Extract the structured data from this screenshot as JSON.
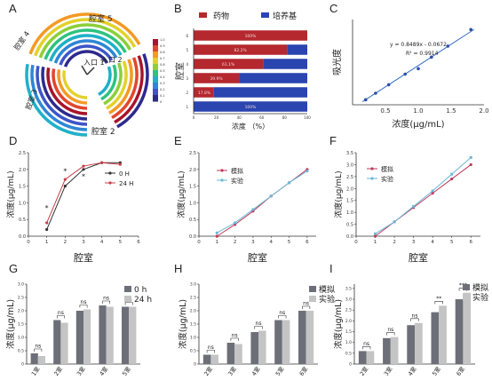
{
  "panel_letters": [
    "A",
    "B",
    "C",
    "D",
    "E",
    "F",
    "G",
    "H",
    "I"
  ],
  "panelA": {
    "chamber_labels": [
      "腔室 5",
      "腔室 4",
      "腔室 3",
      "腔室 2",
      "入口 1",
      "入口 2"
    ],
    "colorbar_ticks": [
      "1.0",
      "0.9",
      "0.8",
      "0.7",
      "0.6",
      "0.5",
      "0.4",
      "0.3",
      "0.2",
      "0.1",
      "0"
    ]
  },
  "colors": {
    "drug": "#b5282e",
    "medium": "#2a44b0",
    "blue_line": "#3a6fc4",
    "red_line": "#c8404a",
    "dark_line": "#333333",
    "sim_line": "#c0395a",
    "exp_line": "#6ab8d8",
    "bar_dark": "#6d6f78",
    "bar_light": "#c4c4c4"
  },
  "chart_data": [
    {
      "panel": "B",
      "type": "bar",
      "orientation": "horizontal-stacked",
      "legend": [
        "药物",
        "培养基"
      ],
      "ylabel": "腔室",
      "xlabel": "浓度 （%）",
      "categories": [
        "1",
        "2",
        "3",
        "4",
        "5",
        "6"
      ],
      "series": [
        {
          "name": "药物",
          "values": [
            0,
            17.8,
            39.9,
            61.1,
            82.2,
            100
          ]
        },
        {
          "name": "培养基",
          "values": [
            100,
            82.2,
            60.1,
            38.9,
            17.8,
            0
          ]
        }
      ],
      "data_labels": [
        "100%",
        "17.8%",
        "39.9%",
        "61.1%",
        "82.2%",
        "100%"
      ],
      "xticks": [
        "0",
        "20",
        "40",
        "60",
        "80",
        "100"
      ],
      "xlim": [
        0,
        100
      ]
    },
    {
      "panel": "C",
      "type": "scatter",
      "xlabel": "浓度(μg/mL)",
      "ylabel": "吸光度",
      "equation": "y = 0.8489x - 0.0672",
      "r2": "R² = 0.9914",
      "x": [
        0.2,
        0.35,
        0.55,
        0.8,
        1.0,
        1.2,
        1.45,
        1.8
      ],
      "y": [
        0.1,
        0.23,
        0.4,
        0.61,
        0.72,
        0.95,
        1.17,
        1.5
      ],
      "xticks": [
        "0.5",
        "1.0",
        "1.5",
        "2.0"
      ],
      "xlim": [
        0,
        2.0
      ],
      "ylim": [
        0,
        1.7
      ]
    },
    {
      "panel": "D",
      "type": "line",
      "xlabel": "腔室",
      "ylabel": "浓度(μg/mL)",
      "x": [
        1,
        2,
        3,
        4,
        5
      ],
      "series": [
        {
          "name": "0 H",
          "values": [
            0.2,
            1.5,
            2.0,
            2.2,
            2.2
          ]
        },
        {
          "name": "24 H",
          "values": [
            0.4,
            1.7,
            2.1,
            2.2,
            2.15
          ]
        }
      ],
      "annotations": [
        "*",
        "*",
        "*"
      ],
      "xticks": [
        "0",
        "1",
        "2",
        "3",
        "4",
        "5",
        "6"
      ],
      "yticks": [
        "0.0",
        "0.5",
        "1.0",
        "1.5",
        "2.0",
        "2.5"
      ],
      "xlim": [
        0,
        6
      ],
      "ylim": [
        0,
        2.5
      ]
    },
    {
      "panel": "E",
      "type": "line",
      "xlabel": "腔室",
      "ylabel": "浓度(μg/mL)",
      "x": [
        1,
        2,
        3,
        4,
        5,
        6
      ],
      "series": [
        {
          "name": "模拟",
          "values": [
            0.0,
            0.35,
            0.75,
            1.2,
            1.6,
            2.0
          ]
        },
        {
          "name": "实验",
          "values": [
            0.1,
            0.4,
            0.8,
            1.2,
            1.6,
            1.95
          ]
        }
      ],
      "xticks": [
        "0",
        "1",
        "2",
        "3",
        "4",
        "5",
        "6"
      ],
      "yticks": [
        "0.0",
        "0.5",
        "1.0",
        "1.5",
        "2.0",
        "2.5"
      ],
      "xlim": [
        0,
        6.5
      ],
      "ylim": [
        0,
        2.5
      ]
    },
    {
      "panel": "F",
      "type": "line",
      "xlabel": "腔室",
      "ylabel": "浓度(μg/mL)",
      "x": [
        1,
        2,
        3,
        4,
        5,
        6
      ],
      "series": [
        {
          "name": "模拟",
          "values": [
            0.0,
            0.6,
            1.2,
            1.8,
            2.4,
            3.0
          ]
        },
        {
          "name": "实验",
          "values": [
            0.1,
            0.6,
            1.25,
            1.9,
            2.6,
            3.3
          ]
        }
      ],
      "xticks": [
        "0",
        "1",
        "2",
        "3",
        "4",
        "5",
        "6"
      ],
      "yticks": [
        "0.0",
        "0.5",
        "1.0",
        "1.5",
        "2.0",
        "2.5",
        "3.0",
        "3.5"
      ],
      "xlim": [
        0,
        6.5
      ],
      "ylim": [
        0,
        3.5
      ]
    },
    {
      "panel": "G",
      "type": "bar",
      "ylabel": "浓度(μg/mL)",
      "legend": [
        "0 h",
        "24 h"
      ],
      "categories": [
        "1室",
        "2室",
        "3室",
        "4室",
        "5室"
      ],
      "series": [
        {
          "name": "0 h",
          "values": [
            0.4,
            1.65,
            2.0,
            2.2,
            2.15
          ]
        },
        {
          "name": "24 h",
          "values": [
            0.3,
            1.55,
            2.05,
            2.15,
            2.15
          ]
        }
      ],
      "significance": [
        "ns",
        "ns",
        "ns",
        "ns",
        "ns"
      ],
      "yticks": [
        "0",
        "0.5",
        "1.0",
        "1.5",
        "2.0",
        "2.5",
        "3.0"
      ],
      "ylim": [
        0,
        3.0
      ]
    },
    {
      "panel": "H",
      "type": "bar",
      "ylabel": "浓度(μg/mL)",
      "legend": [
        "模拟",
        "实验"
      ],
      "categories": [
        "2室",
        "3室",
        "4室",
        "5室",
        "6室"
      ],
      "series": [
        {
          "name": "模拟",
          "values": [
            0.35,
            0.8,
            1.2,
            1.65,
            2.0
          ]
        },
        {
          "name": "实验",
          "values": [
            0.35,
            0.75,
            1.25,
            1.65,
            2.0
          ]
        }
      ],
      "significance": [
        "ns",
        "ns",
        "ns",
        "ns",
        "ns"
      ],
      "yticks": [
        "0",
        "0.5",
        "1.0",
        "1.5",
        "2.0",
        "2.5",
        "3.0"
      ],
      "ylim": [
        0,
        3.0
      ]
    },
    {
      "panel": "I",
      "type": "bar",
      "ylabel": "浓度(μg/mL)",
      "legend": [
        "模拟",
        "实验"
      ],
      "categories": [
        "2室",
        "3室",
        "4室",
        "5室",
        "6室"
      ],
      "series": [
        {
          "name": "模拟",
          "values": [
            0.6,
            1.2,
            1.8,
            2.4,
            3.0
          ]
        },
        {
          "name": "实验",
          "values": [
            0.6,
            1.25,
            1.9,
            2.7,
            3.3
          ]
        }
      ],
      "significance": [
        "ns",
        "ns",
        "ns",
        "**",
        "***"
      ],
      "yticks": [
        "0",
        "0.5",
        "1.0",
        "1.5",
        "2.0",
        "2.5",
        "3.0",
        "3.5"
      ],
      "ylim": [
        0,
        3.7
      ]
    }
  ]
}
